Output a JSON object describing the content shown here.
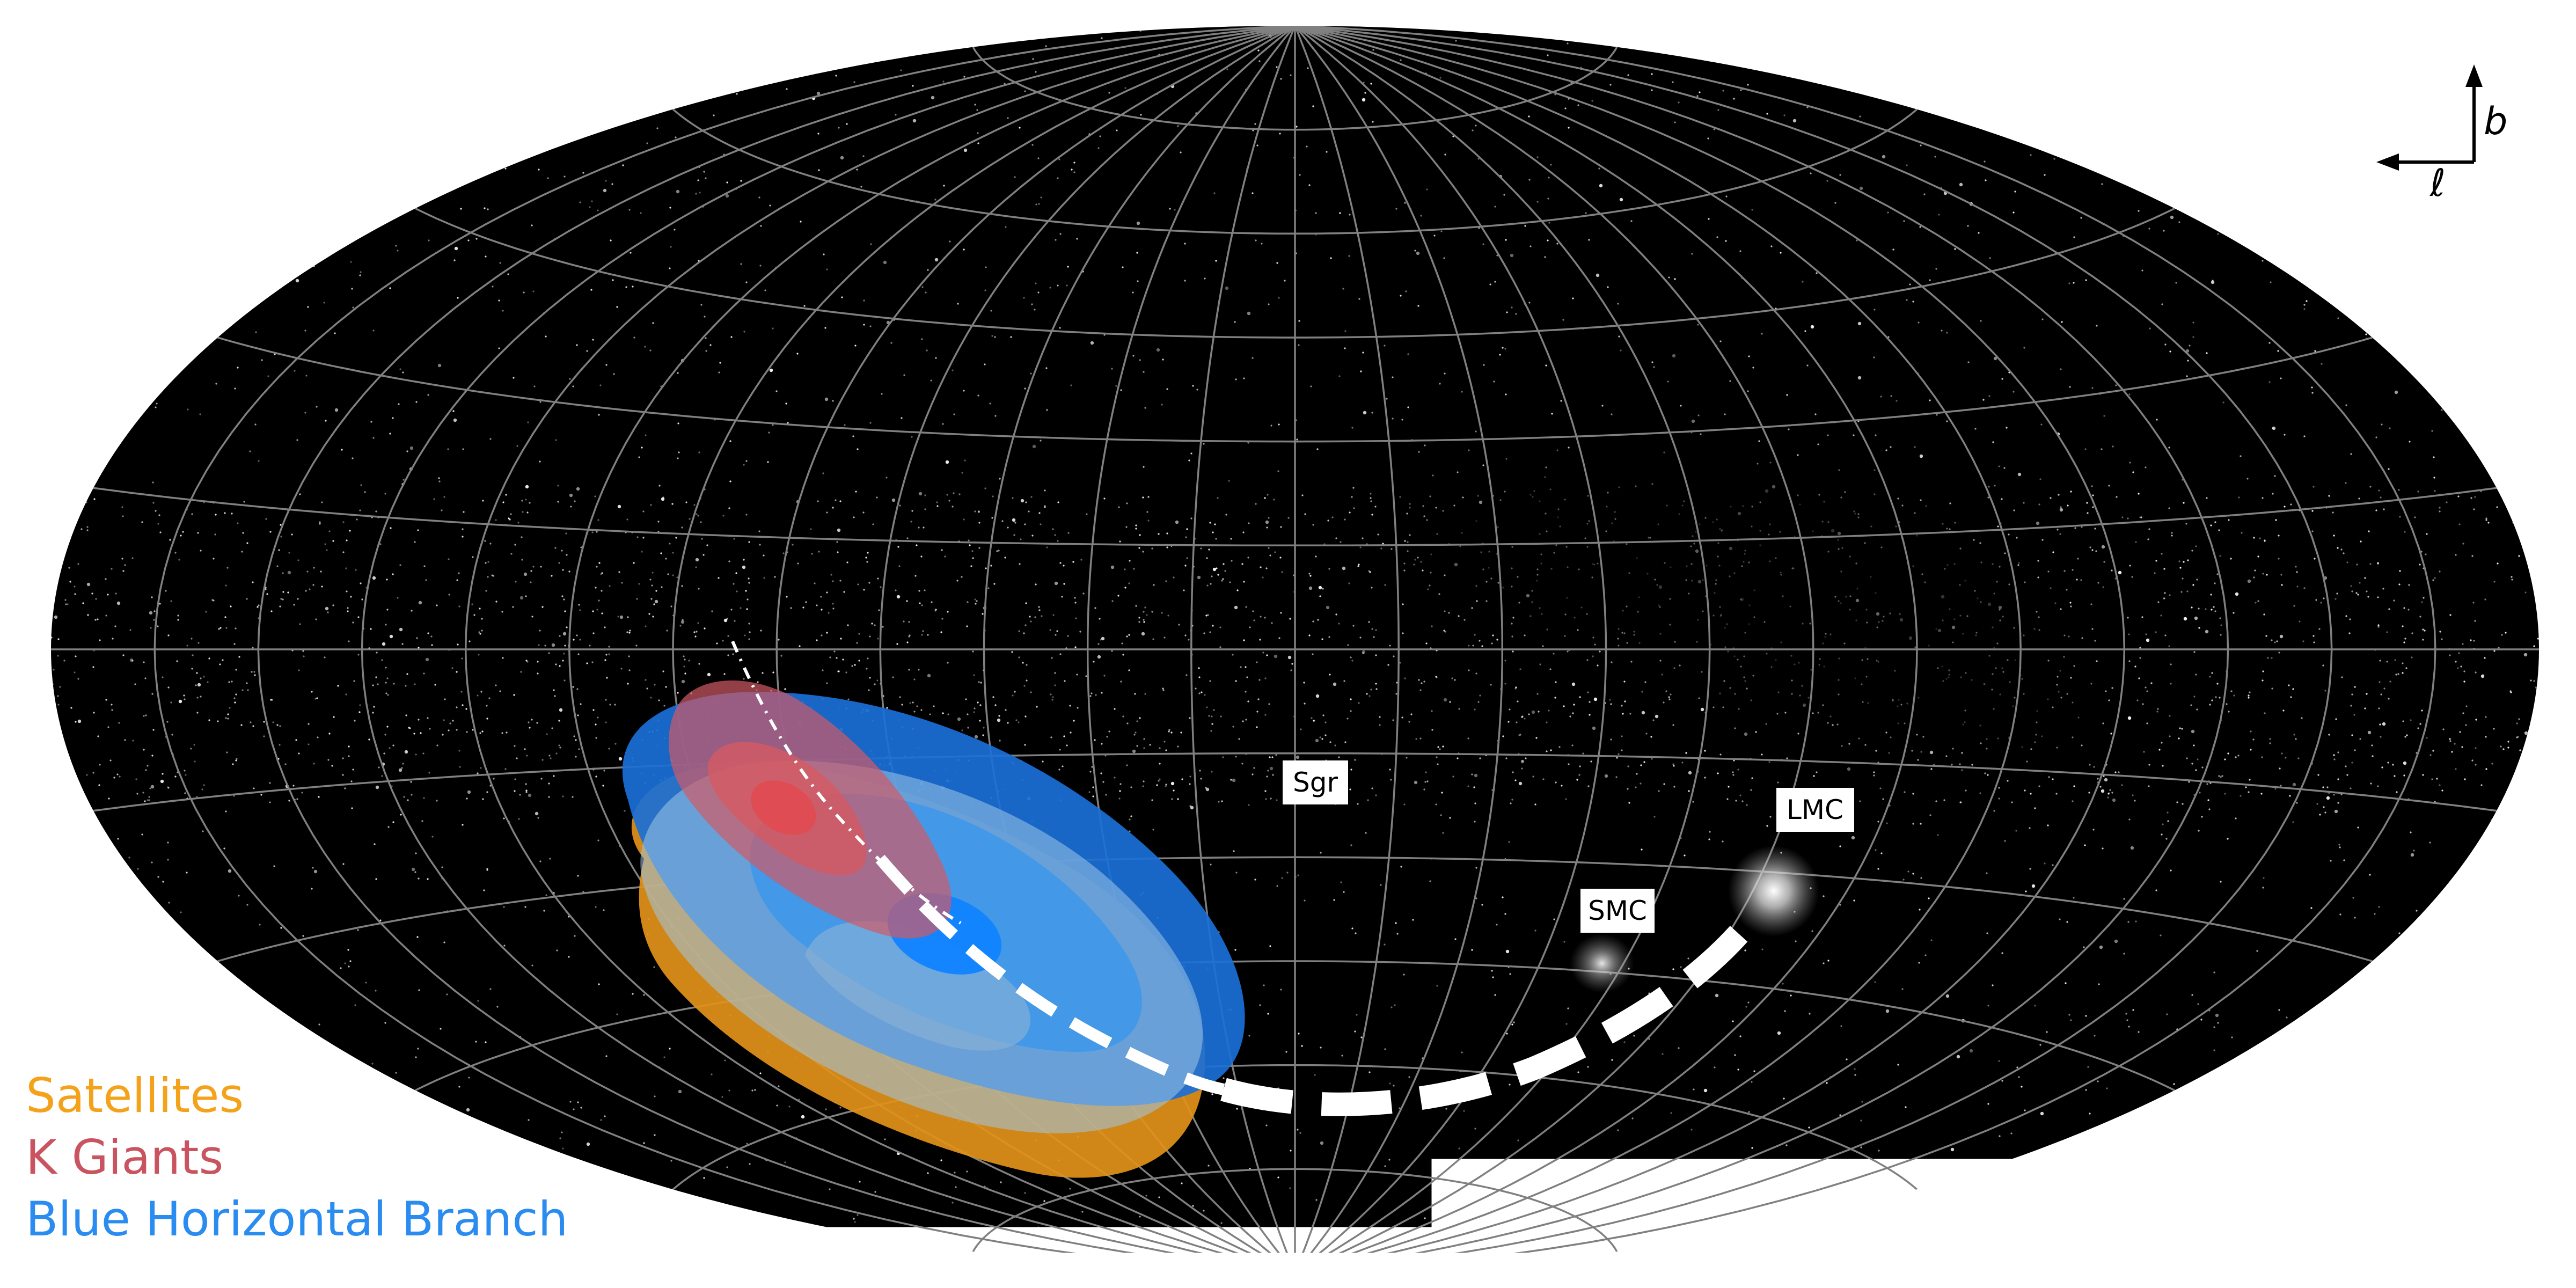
{
  "map": {
    "projection": "aitoff-galactic",
    "background": "#000000",
    "graticule_color": "#7a7a7a"
  },
  "objects": {
    "sgr": "Sgr",
    "smc": "SMC",
    "lmc": "LMC"
  },
  "compass": {
    "b": "b",
    "l": "ℓ"
  },
  "legend": [
    {
      "label": "Satellites",
      "color": "#f5a21b"
    },
    {
      "label": "K Giants",
      "color": "#c9545f"
    },
    {
      "label": "Blue Horizontal Branch",
      "color": "#2a8cf0"
    }
  ]
}
